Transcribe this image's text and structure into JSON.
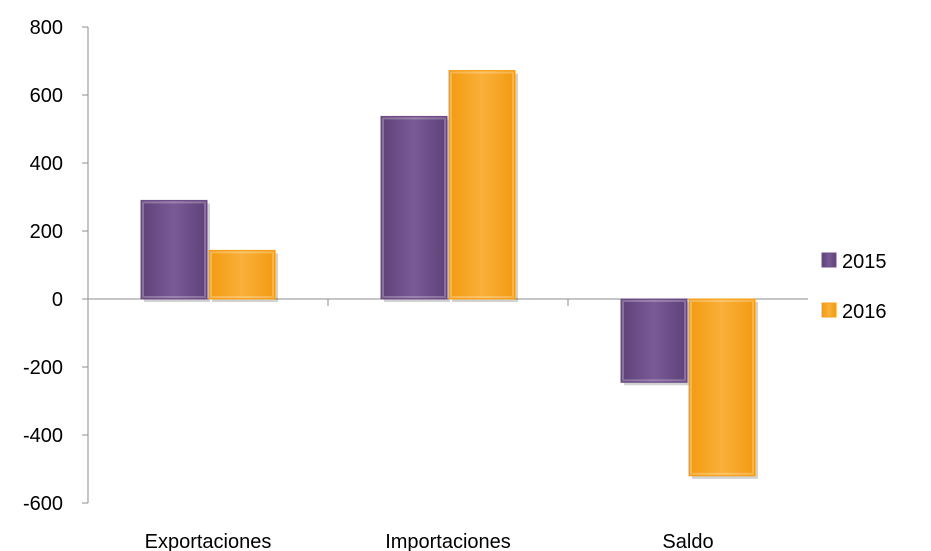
{
  "chart_data": {
    "type": "bar",
    "categories": [
      "Exportaciones",
      "Importaciones",
      "Saldo"
    ],
    "series": [
      {
        "name": "2015",
        "values": [
          290,
          537,
          -245
        ],
        "color": "#6f4e8a"
      },
      {
        "name": "2016",
        "values": [
          143,
          672,
          -520
        ],
        "color": "#f5a11a"
      }
    ],
    "ylim": [
      -600,
      800
    ],
    "yticks": [
      800,
      600,
      400,
      200,
      0,
      -200,
      -400,
      -600
    ],
    "legend_position": "right",
    "grid": false
  }
}
